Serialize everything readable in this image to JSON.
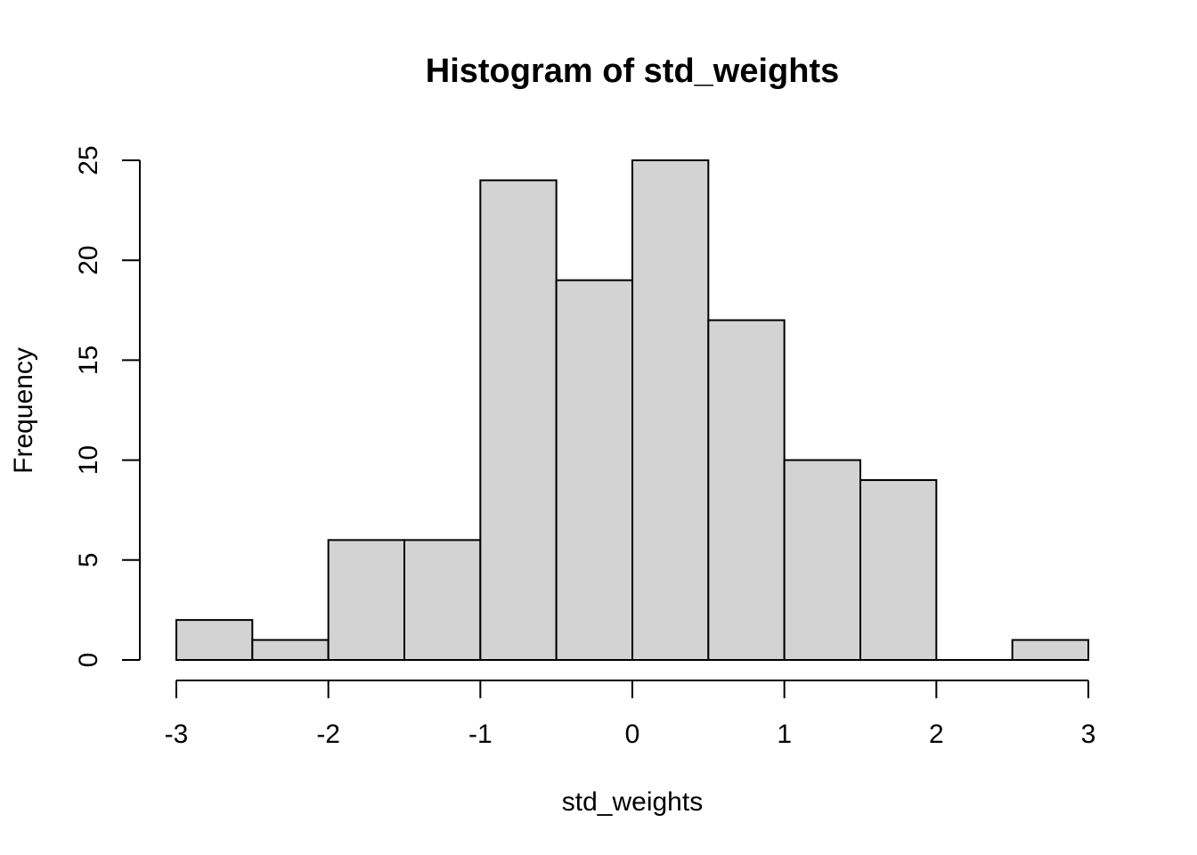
{
  "chart_data": {
    "type": "bar",
    "title": "Histogram of std_weights",
    "xlabel": "std_weights",
    "ylabel": "Frequency",
    "bin_edges": [
      -3,
      -2.5,
      -2,
      -1.5,
      -1,
      -0.5,
      0,
      0.5,
      1,
      1.5,
      2,
      2.5,
      3
    ],
    "values": [
      2,
      1,
      6,
      6,
      24,
      19,
      25,
      17,
      10,
      9,
      0,
      1
    ],
    "xlim": [
      -3,
      3
    ],
    "ylim": [
      0,
      25
    ],
    "x_ticks": [
      -3,
      -2,
      -1,
      0,
      1,
      2,
      3
    ],
    "x_tick_labels": [
      "-3",
      "-2",
      "-1",
      "0",
      "1",
      "2",
      "3"
    ],
    "y_ticks": [
      0,
      5,
      10,
      15,
      20,
      25
    ],
    "y_tick_labels": [
      "0",
      "5",
      "10",
      "15",
      "20",
      "25"
    ],
    "grid": false,
    "bar_fill": "#d3d3d3",
    "bar_stroke": "#000000"
  }
}
